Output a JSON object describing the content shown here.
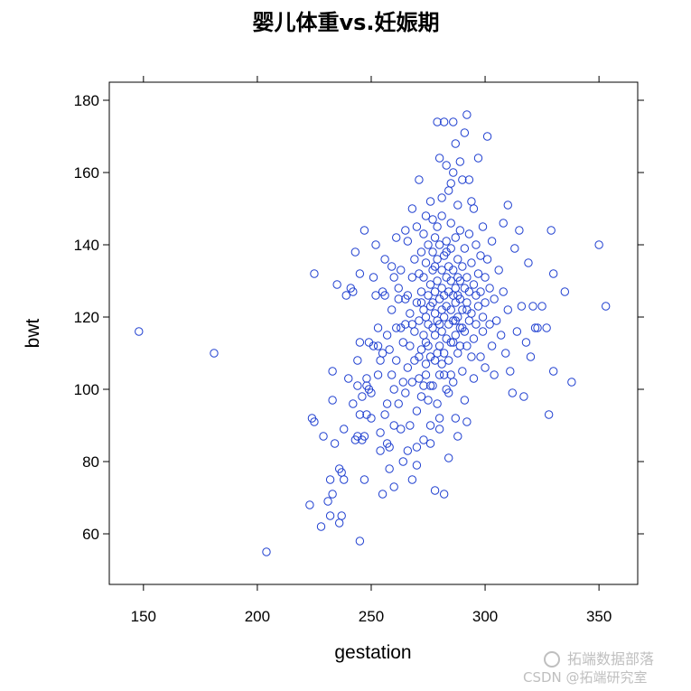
{
  "chart_data": {
    "type": "scatter",
    "title": "婴儿体重vs.妊娠期",
    "xlabel": "gestation",
    "ylabel": "bwt",
    "xlim": [
      135,
      367
    ],
    "ylim": [
      46,
      185
    ],
    "xticks": [
      "150",
      "200",
      "250",
      "300",
      "350"
    ],
    "yticks": [
      "60",
      "80",
      "100",
      "120",
      "140",
      "160",
      "180"
    ],
    "marker": "open-circle",
    "color": "#1f3fd0",
    "points": [
      [
        148,
        116
      ],
      [
        181,
        110
      ],
      [
        204,
        55
      ],
      [
        223,
        68
      ],
      [
        224,
        92
      ],
      [
        225,
        91
      ],
      [
        225,
        132
      ],
      [
        228,
        62
      ],
      [
        229,
        87
      ],
      [
        231,
        69
      ],
      [
        232,
        65
      ],
      [
        232,
        75
      ],
      [
        233,
        105
      ],
      [
        233,
        71
      ],
      [
        233,
        97
      ],
      [
        234,
        85
      ],
      [
        235,
        129
      ],
      [
        236,
        63
      ],
      [
        236,
        78
      ],
      [
        237,
        77
      ],
      [
        237,
        65
      ],
      [
        238,
        89
      ],
      [
        238,
        75
      ],
      [
        239,
        126
      ],
      [
        240,
        103
      ],
      [
        241,
        128
      ],
      [
        242,
        96
      ],
      [
        242,
        127
      ],
      [
        243,
        86
      ],
      [
        243,
        138
      ],
      [
        244,
        108
      ],
      [
        244,
        101
      ],
      [
        244,
        87
      ],
      [
        245,
        132
      ],
      [
        245,
        58
      ],
      [
        245,
        93
      ],
      [
        245,
        113
      ],
      [
        246,
        98
      ],
      [
        246,
        86
      ],
      [
        247,
        144
      ],
      [
        247,
        87
      ],
      [
        247,
        75
      ],
      [
        248,
        103
      ],
      [
        248,
        93
      ],
      [
        248,
        101
      ],
      [
        249,
        100
      ],
      [
        249,
        113
      ],
      [
        250,
        92
      ],
      [
        250,
        99
      ],
      [
        251,
        131
      ],
      [
        251,
        112
      ],
      [
        252,
        126
      ],
      [
        252,
        140
      ],
      [
        253,
        117
      ],
      [
        253,
        112
      ],
      [
        253,
        104
      ],
      [
        254,
        108
      ],
      [
        254,
        88
      ],
      [
        254,
        83
      ],
      [
        255,
        71
      ],
      [
        255,
        127
      ],
      [
        255,
        110
      ],
      [
        256,
        126
      ],
      [
        256,
        136
      ],
      [
        256,
        93
      ],
      [
        257,
        115
      ],
      [
        257,
        85
      ],
      [
        257,
        96
      ],
      [
        258,
        84
      ],
      [
        258,
        78
      ],
      [
        258,
        111
      ],
      [
        259,
        122
      ],
      [
        259,
        104
      ],
      [
        259,
        134
      ],
      [
        260,
        100
      ],
      [
        260,
        90
      ],
      [
        260,
        73
      ],
      [
        261,
        142
      ],
      [
        261,
        117
      ],
      [
        261,
        108
      ],
      [
        262,
        125
      ],
      [
        262,
        128
      ],
      [
        262,
        96
      ],
      [
        263,
        89
      ],
      [
        263,
        133
      ],
      [
        263,
        117
      ],
      [
        264,
        80
      ],
      [
        264,
        102
      ],
      [
        264,
        113
      ],
      [
        265,
        144
      ],
      [
        265,
        118
      ],
      [
        265,
        99
      ],
      [
        266,
        126
      ],
      [
        266,
        106
      ],
      [
        266,
        141
      ],
      [
        267,
        90
      ],
      [
        267,
        112
      ],
      [
        267,
        121
      ],
      [
        268,
        131
      ],
      [
        268,
        75
      ],
      [
        268,
        102
      ],
      [
        268,
        150
      ],
      [
        269,
        108
      ],
      [
        269,
        136
      ],
      [
        269,
        116
      ],
      [
        270,
        94
      ],
      [
        270,
        124
      ],
      [
        270,
        145
      ],
      [
        270,
        84
      ],
      [
        271,
        132
      ],
      [
        271,
        103
      ],
      [
        271,
        119
      ],
      [
        271,
        158
      ],
      [
        272,
        127
      ],
      [
        272,
        98
      ],
      [
        272,
        138
      ],
      [
        272,
        111
      ],
      [
        273,
        115
      ],
      [
        273,
        86
      ],
      [
        273,
        122
      ],
      [
        273,
        143
      ],
      [
        273,
        131
      ],
      [
        274,
        104
      ],
      [
        274,
        120
      ],
      [
        274,
        107
      ],
      [
        274,
        135
      ],
      [
        274,
        148
      ],
      [
        275,
        126
      ],
      [
        275,
        97
      ],
      [
        275,
        112
      ],
      [
        275,
        118
      ],
      [
        275,
        140
      ],
      [
        276,
        123
      ],
      [
        276,
        129
      ],
      [
        276,
        109
      ],
      [
        276,
        85
      ],
      [
        276,
        152
      ],
      [
        277,
        117
      ],
      [
        277,
        133
      ],
      [
        277,
        101
      ],
      [
        277,
        124
      ],
      [
        277,
        138
      ],
      [
        278,
        115
      ],
      [
        278,
        127
      ],
      [
        278,
        142
      ],
      [
        278,
        108
      ],
      [
        278,
        121
      ],
      [
        279,
        130
      ],
      [
        279,
        119
      ],
      [
        279,
        96
      ],
      [
        279,
        136
      ],
      [
        279,
        145
      ],
      [
        280,
        125
      ],
      [
        280,
        112
      ],
      [
        280,
        118
      ],
      [
        280,
        140
      ],
      [
        280,
        104
      ],
      [
        280,
        164
      ],
      [
        281,
        128
      ],
      [
        281,
        133
      ],
      [
        281,
        116
      ],
      [
        281,
        122
      ],
      [
        281,
        148
      ],
      [
        282,
        120
      ],
      [
        282,
        137
      ],
      [
        282,
        126
      ],
      [
        282,
        110
      ],
      [
        282,
        174
      ],
      [
        283,
        131
      ],
      [
        283,
        123
      ],
      [
        283,
        114
      ],
      [
        283,
        141
      ],
      [
        283,
        100
      ],
      [
        284,
        127
      ],
      [
        284,
        134
      ],
      [
        284,
        118
      ],
      [
        284,
        155
      ],
      [
        284,
        108
      ],
      [
        285,
        122
      ],
      [
        285,
        130
      ],
      [
        285,
        139
      ],
      [
        285,
        113
      ],
      [
        285,
        146
      ],
      [
        286,
        126
      ],
      [
        286,
        119
      ],
      [
        286,
        133
      ],
      [
        286,
        102
      ],
      [
        286,
        160
      ],
      [
        287,
        128
      ],
      [
        287,
        115
      ],
      [
        287,
        124
      ],
      [
        287,
        142
      ],
      [
        287,
        92
      ],
      [
        288,
        131
      ],
      [
        288,
        120
      ],
      [
        288,
        136
      ],
      [
        288,
        110
      ],
      [
        288,
        151
      ],
      [
        289,
        125
      ],
      [
        289,
        117
      ],
      [
        289,
        130
      ],
      [
        289,
        144
      ],
      [
        290,
        122
      ],
      [
        290,
        134
      ],
      [
        290,
        105
      ],
      [
        290,
        158
      ],
      [
        291,
        128
      ],
      [
        291,
        116
      ],
      [
        291,
        139
      ],
      [
        291,
        97
      ],
      [
        292,
        124
      ],
      [
        292,
        131
      ],
      [
        292,
        176
      ],
      [
        292,
        112
      ],
      [
        293,
        127
      ],
      [
        293,
        143
      ],
      [
        293,
        119
      ],
      [
        294,
        135
      ],
      [
        294,
        121
      ],
      [
        294,
        152
      ],
      [
        295,
        114
      ],
      [
        295,
        129
      ],
      [
        295,
        103
      ],
      [
        296,
        126
      ],
      [
        296,
        140
      ],
      [
        296,
        118
      ],
      [
        297,
        132
      ],
      [
        297,
        123
      ],
      [
        297,
        164
      ],
      [
        298,
        109
      ],
      [
        298,
        137
      ],
      [
        298,
        127
      ],
      [
        299,
        120
      ],
      [
        299,
        145
      ],
      [
        299,
        116
      ],
      [
        300,
        131
      ],
      [
        300,
        106
      ],
      [
        300,
        124
      ],
      [
        301,
        136
      ],
      [
        301,
        170
      ],
      [
        302,
        118
      ],
      [
        302,
        128
      ],
      [
        303,
        112
      ],
      [
        303,
        141
      ],
      [
        304,
        125
      ],
      [
        304,
        104
      ],
      [
        305,
        119
      ],
      [
        306,
        133
      ],
      [
        307,
        115
      ],
      [
        308,
        127
      ],
      [
        308,
        146
      ],
      [
        309,
        110
      ],
      [
        310,
        151
      ],
      [
        310,
        122
      ],
      [
        311,
        105
      ],
      [
        312,
        99
      ],
      [
        313,
        139
      ],
      [
        314,
        116
      ],
      [
        315,
        144
      ],
      [
        316,
        123
      ],
      [
        317,
        98
      ],
      [
        318,
        113
      ],
      [
        319,
        135
      ],
      [
        320,
        109
      ],
      [
        321,
        123
      ],
      [
        322,
        117
      ],
      [
        323,
        117
      ],
      [
        325,
        123
      ],
      [
        327,
        117
      ],
      [
        328,
        93
      ],
      [
        329,
        144
      ],
      [
        330,
        105
      ],
      [
        330,
        132
      ],
      [
        335,
        127
      ],
      [
        338,
        102
      ],
      [
        350,
        140
      ],
      [
        353,
        123
      ],
      [
        260,
        131
      ],
      [
        265,
        125
      ],
      [
        268,
        118
      ],
      [
        271,
        109
      ],
      [
        274,
        113
      ],
      [
        276,
        101
      ],
      [
        278,
        134
      ],
      [
        280,
        92
      ],
      [
        282,
        104
      ],
      [
        284,
        99
      ],
      [
        286,
        113
      ],
      [
        288,
        126
      ],
      [
        290,
        117
      ],
      [
        292,
        122
      ],
      [
        294,
        109
      ],
      [
        279,
        110
      ],
      [
        281,
        107
      ],
      [
        283,
        138
      ],
      [
        285,
        104
      ],
      [
        287,
        119
      ],
      [
        289,
        112
      ],
      [
        272,
        124
      ],
      [
        273,
        101
      ],
      [
        277,
        147
      ],
      [
        281,
        153
      ],
      [
        283,
        162
      ],
      [
        285,
        157
      ],
      [
        287,
        168
      ],
      [
        289,
        163
      ],
      [
        291,
        171
      ],
      [
        293,
        158
      ],
      [
        295,
        150
      ],
      [
        286,
        174
      ],
      [
        279,
        174
      ],
      [
        276,
        90
      ],
      [
        278,
        72
      ],
      [
        282,
        71
      ],
      [
        280,
        89
      ],
      [
        284,
        81
      ],
      [
        288,
        87
      ],
      [
        292,
        91
      ],
      [
        270,
        79
      ],
      [
        266,
        83
      ]
    ]
  },
  "watermark": {
    "line1": "拓端数据部落",
    "line2": "CSDN @拓端研究室"
  }
}
